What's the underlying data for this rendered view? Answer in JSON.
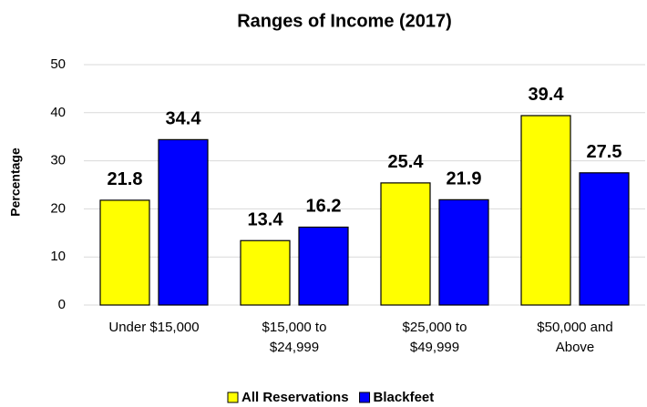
{
  "chart_data": {
    "type": "bar",
    "title": "Ranges of Income (2017)",
    "y_label": "Percentage",
    "categories": [
      "Under $15,000",
      "$15,000 to\n$24,999",
      "$25,000 to\n$49,999",
      "$50,000 and\nAbove"
    ],
    "series": [
      {
        "name": "All Reservations",
        "color": "#ffff00",
        "values": [
          21.8,
          13.4,
          25.4,
          39.4
        ]
      },
      {
        "name": "Blackfeet",
        "color": "#0000ff",
        "values": [
          34.4,
          16.2,
          21.9,
          27.5
        ]
      }
    ],
    "ylim": [
      0,
      50
    ],
    "yticks": [
      0,
      10,
      20,
      30,
      40,
      50
    ],
    "grid": true,
    "legend": "bottom"
  }
}
